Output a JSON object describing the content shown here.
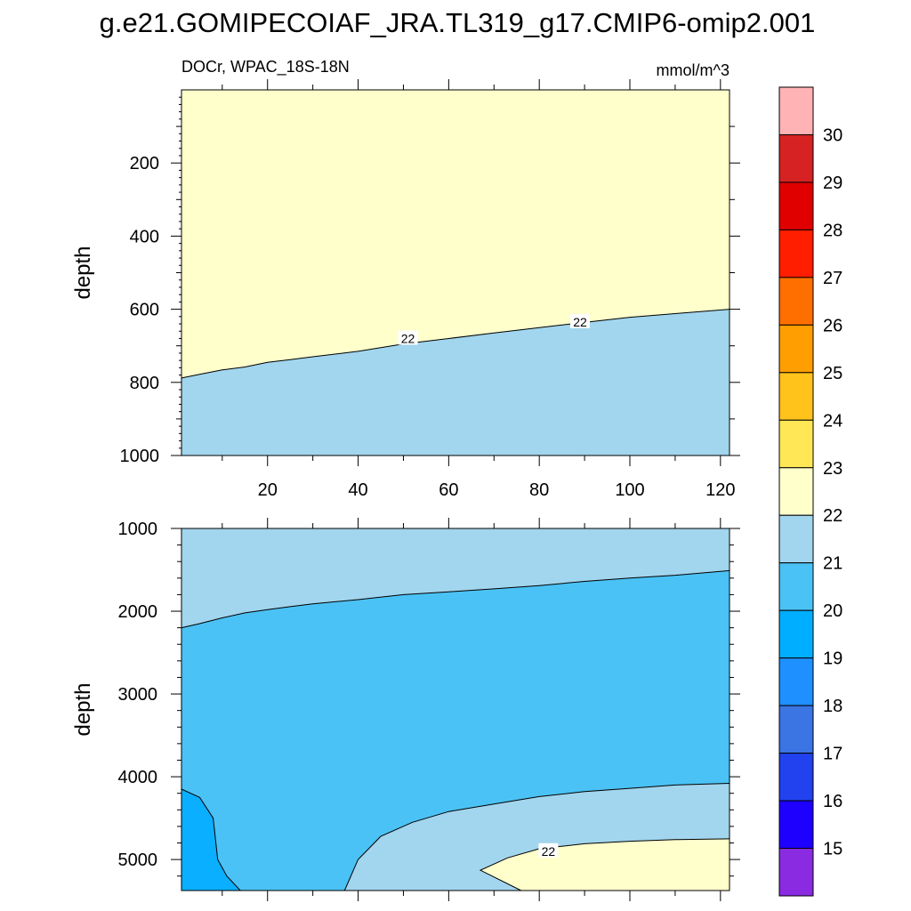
{
  "figure": {
    "title": "g.e21.GOMIPECOIAF_JRA.TL319_g17.CMIP6-omip2.001",
    "variable_label": "DOCr, WPAC_18S-18N",
    "units": "mmol/m^3"
  },
  "colors": {
    "below_21": "#4BC2F5",
    "range_21_22": "#A2D5EE",
    "range_22_23": "#FFFFCC",
    "below_20": "#0BAFFF",
    "line": "#000000"
  },
  "chart_data": [
    {
      "type": "contour",
      "panel": "upper",
      "xlabel": "",
      "ylabel": "depth",
      "xlim": [
        1,
        122
      ],
      "ylim": [
        1000,
        0
      ],
      "xticks": [
        20,
        40,
        60,
        80,
        100,
        120
      ],
      "yticks": [
        200,
        400,
        600,
        800,
        1000
      ],
      "regions": [
        {
          "range": "22-23",
          "description": "above contour"
        },
        {
          "range": "21-22",
          "description": "below contour"
        }
      ],
      "contour_22": {
        "x": [
          1,
          5,
          10,
          15,
          20,
          25,
          30,
          40,
          50,
          60,
          70,
          80,
          90,
          100,
          110,
          122
        ],
        "depth": [
          788,
          778,
          766,
          758,
          745,
          738,
          730,
          715,
          695,
          680,
          665,
          650,
          636,
          622,
          612,
          600
        ]
      },
      "contour_labels": [
        {
          "text": "22",
          "x": 51,
          "depth": 680
        },
        {
          "text": "22",
          "x": 89,
          "depth": 635
        }
      ]
    },
    {
      "type": "contour",
      "panel": "lower",
      "xlabel": "",
      "ylabel": "depth",
      "xlim": [
        1,
        122
      ],
      "ylim": [
        5375,
        1000
      ],
      "yticks": [
        1000,
        2000,
        3000,
        4000,
        5000
      ],
      "contour_21_upper": {
        "x": [
          1,
          5,
          10,
          15,
          20,
          25,
          30,
          40,
          50,
          60,
          70,
          80,
          90,
          100,
          110,
          122
        ],
        "depth": [
          2200,
          2150,
          2080,
          2020,
          1980,
          1945,
          1910,
          1860,
          1800,
          1765,
          1730,
          1690,
          1640,
          1600,
          1565,
          1510
        ]
      },
      "contour_21_lower": {
        "x": [
          37,
          40,
          45,
          52,
          60,
          70,
          80,
          90,
          100,
          110,
          122
        ],
        "depth": [
          5375,
          5000,
          4720,
          4550,
          4420,
          4330,
          4240,
          4180,
          4140,
          4100,
          4080
        ]
      },
      "contour_20": {
        "x": [
          1,
          5,
          8,
          9,
          10,
          11,
          14
        ],
        "depth": [
          4150,
          4250,
          4500,
          5000,
          5100,
          5200,
          5375
        ]
      },
      "contour_22": {
        "x": [
          67,
          73,
          80,
          90,
          100,
          110,
          122
        ],
        "depth": [
          5130,
          4980,
          4870,
          4810,
          4780,
          4760,
          4750
        ]
      },
      "contour_22_end": {
        "x": 76,
        "depth": 5375
      },
      "contour_labels": [
        {
          "text": "22",
          "x": 82,
          "depth": 4900
        }
      ]
    }
  ],
  "colorbar": {
    "labels": [
      "15",
      "16",
      "17",
      "18",
      "19",
      "20",
      "21",
      "22",
      "23",
      "24",
      "25",
      "26",
      "27",
      "28",
      "29",
      "30"
    ],
    "colors": [
      "#8A2BE2",
      "#1E00FF",
      "#2142EE",
      "#3A75E3",
      "#1E90FF",
      "#00AEFF",
      "#4BC2F5",
      "#A2D5EE",
      "#FFFFCC",
      "#FFE755",
      "#FFC31B",
      "#FF9E00",
      "#FF6F00",
      "#FF1E00",
      "#E00000",
      "#D62222",
      "#FFB3B5"
    ]
  }
}
